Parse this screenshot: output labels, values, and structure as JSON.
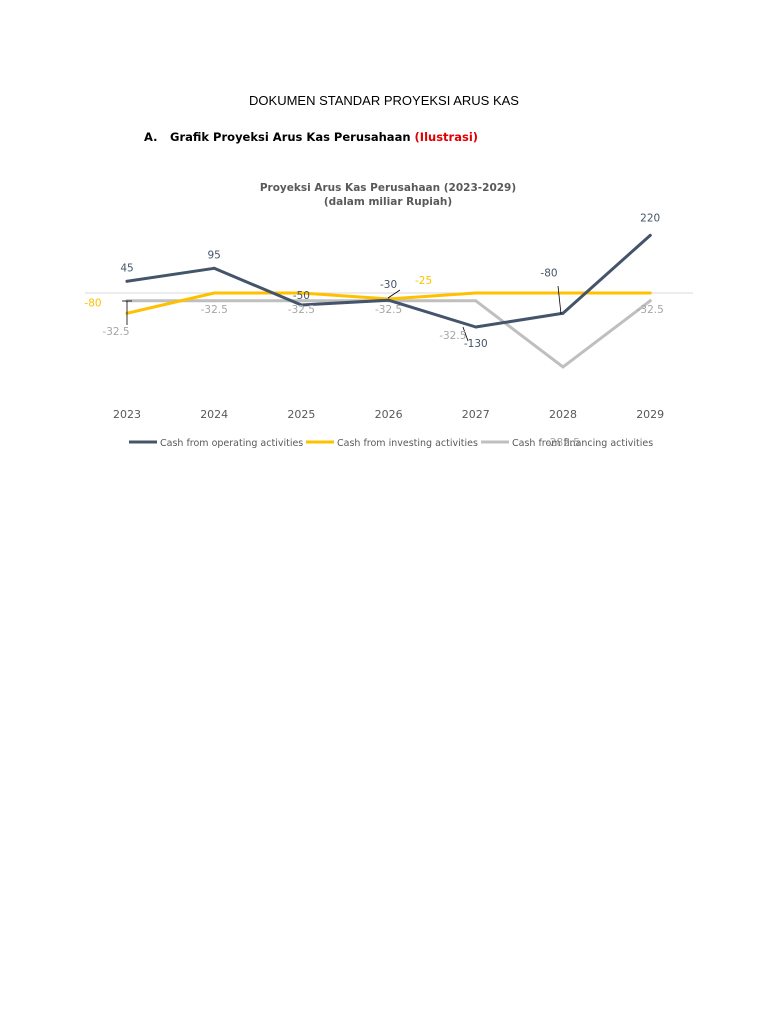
{
  "document": {
    "title": "DOKUMEN STANDAR PROYEKSI ARUS KAS",
    "section_number": "A.",
    "section_title": "Grafik Proyeksi Arus Kas Perusahaan",
    "section_note": "(Ilustrasi)",
    "accent_color": "#e00000"
  },
  "chart_data": {
    "type": "line",
    "title": "Proyeksi Arus Kas Perusahaan (2023-2029)",
    "subtitle": "(dalam miliar Rupiah)",
    "categories": [
      "2023",
      "2024",
      "2025",
      "2026",
      "2027",
      "2028",
      "2029"
    ],
    "series": [
      {
        "name": "Cash from operating activities",
        "color": "#44546a",
        "values": [
          45,
          95,
          -50,
          -30,
          -130,
          -80,
          220
        ],
        "labels": [
          "45",
          "95",
          "-50",
          "-30",
          "-130",
          "-80",
          "220"
        ]
      },
      {
        "name": "Cash from investing activities",
        "color": "#ffc000",
        "values": [
          -80,
          0,
          0,
          -25,
          0,
          0,
          0
        ],
        "labels": [
          "-80",
          "",
          "",
          "-25",
          "",
          "",
          ""
        ]
      },
      {
        "name": "Cash from financing activities",
        "color": "#bfbfbf",
        "values": [
          -32.5,
          -32.5,
          -32.5,
          -32.5,
          -32.5,
          -282.5,
          -32.5
        ],
        "labels": [
          "-32.5",
          "-32.5",
          "-32.5",
          "-32.5",
          "-32.5",
          "-282.5",
          "-32.5"
        ]
      }
    ],
    "xlabel": "",
    "ylabel": "",
    "legend_position": "bottom",
    "grid": false
  }
}
